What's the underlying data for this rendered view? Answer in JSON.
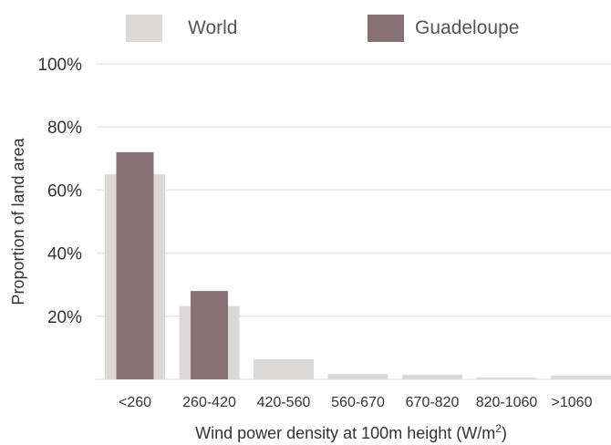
{
  "colors": {
    "world": "#ddd8d8",
    "guadeloupe": "#877176",
    "grid": "#e9e9e9",
    "text": "#333333"
  },
  "chart_data": {
    "type": "bar",
    "categories": [
      "<260",
      "260-420",
      "420-560",
      "560-670",
      "670-820",
      "820-1060",
      ">1060"
    ],
    "series": [
      {
        "name": "World",
        "values": [
          65,
          23.2,
          6.4,
          1.7,
          1.5,
          0.6,
          1.2
        ]
      },
      {
        "name": "Guadeloupe",
        "values": [
          72,
          28,
          0,
          0,
          0,
          0,
          0
        ]
      }
    ],
    "ylabel": "Proportion of land area",
    "xlabel": "Wind power density at 100m height (W/m²)",
    "ylim": [
      0,
      100
    ],
    "yticks": [
      20,
      40,
      60,
      80,
      100
    ],
    "ytick_labels": [
      "20%",
      "40%",
      "60%",
      "80%",
      "100%"
    ],
    "grid": true,
    "legend_position": "top"
  }
}
